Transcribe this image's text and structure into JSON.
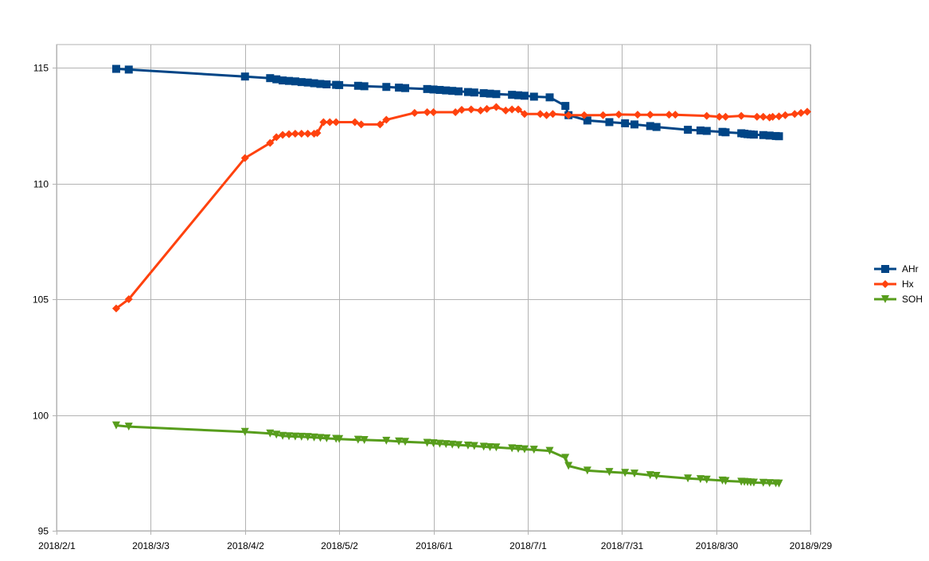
{
  "chart_data": {
    "type": "line",
    "title": "",
    "xlabel": "",
    "ylabel": "",
    "x_axis": {
      "type": "date",
      "range": [
        "2018-02-01",
        "2018-09-29"
      ],
      "tick_labels": [
        "2018/2/1",
        "2018/3/3",
        "2018/4/2",
        "2018/5/2",
        "2018/6/1",
        "2018/7/1",
        "2018/7/31",
        "2018/8/30",
        "2018/9/29"
      ],
      "tick_dates": [
        "2018-02-01",
        "2018-03-03",
        "2018-04-02",
        "2018-05-02",
        "2018-06-01",
        "2018-07-01",
        "2018-07-31",
        "2018-08-30",
        "2018-09-29"
      ]
    },
    "y_axis": {
      "range": [
        95,
        116
      ],
      "ticks": [
        95,
        100,
        105,
        110,
        115
      ],
      "tick_labels": [
        "95",
        "100",
        "105",
        "110",
        "115"
      ]
    },
    "grid": true,
    "legend_position": "right",
    "series": [
      {
        "name": "AHr",
        "color": "#004586",
        "marker": "square",
        "points": [
          [
            "2018-02-20",
            114.95
          ],
          [
            "2018-02-24",
            114.92
          ],
          [
            "2018-04-02",
            114.62
          ],
          [
            "2018-04-10",
            114.55
          ],
          [
            "2018-04-12",
            114.5
          ],
          [
            "2018-04-14",
            114.45
          ],
          [
            "2018-04-16",
            114.43
          ],
          [
            "2018-04-18",
            114.41
          ],
          [
            "2018-04-20",
            114.38
          ],
          [
            "2018-04-22",
            114.36
          ],
          [
            "2018-04-24",
            114.33
          ],
          [
            "2018-04-26",
            114.3
          ],
          [
            "2018-04-28",
            114.28
          ],
          [
            "2018-05-01",
            114.26
          ],
          [
            "2018-05-02",
            114.25
          ],
          [
            "2018-05-08",
            114.22
          ],
          [
            "2018-05-10",
            114.2
          ],
          [
            "2018-05-17",
            114.17
          ],
          [
            "2018-05-21",
            114.14
          ],
          [
            "2018-05-23",
            114.12
          ],
          [
            "2018-05-30",
            114.08
          ],
          [
            "2018-06-01",
            114.06
          ],
          [
            "2018-06-03",
            114.04
          ],
          [
            "2018-06-05",
            114.02
          ],
          [
            "2018-06-07",
            114.0
          ],
          [
            "2018-06-09",
            113.98
          ],
          [
            "2018-06-12",
            113.95
          ],
          [
            "2018-06-14",
            113.93
          ],
          [
            "2018-06-17",
            113.9
          ],
          [
            "2018-06-19",
            113.88
          ],
          [
            "2018-06-21",
            113.86
          ],
          [
            "2018-06-26",
            113.83
          ],
          [
            "2018-06-28",
            113.81
          ],
          [
            "2018-06-30",
            113.79
          ],
          [
            "2018-07-03",
            113.75
          ],
          [
            "2018-07-08",
            113.72
          ],
          [
            "2018-07-13",
            113.35
          ],
          [
            "2018-07-14",
            112.95
          ],
          [
            "2018-07-20",
            112.72
          ],
          [
            "2018-07-27",
            112.65
          ],
          [
            "2018-08-01",
            112.6
          ],
          [
            "2018-08-04",
            112.55
          ],
          [
            "2018-08-09",
            112.48
          ],
          [
            "2018-08-11",
            112.44
          ],
          [
            "2018-08-21",
            112.32
          ],
          [
            "2018-08-25",
            112.29
          ],
          [
            "2018-08-27",
            112.27
          ],
          [
            "2018-09-01",
            112.23
          ],
          [
            "2018-09-02",
            112.21
          ],
          [
            "2018-09-07",
            112.17
          ],
          [
            "2018-09-08",
            112.15
          ],
          [
            "2018-09-09",
            112.13
          ],
          [
            "2018-09-10",
            112.12
          ],
          [
            "2018-09-11",
            112.11
          ],
          [
            "2018-09-14",
            112.09
          ],
          [
            "2018-09-16",
            112.07
          ],
          [
            "2018-09-18",
            112.05
          ],
          [
            "2018-09-19",
            112.04
          ]
        ]
      },
      {
        "name": "Hx",
        "color": "#ff420e",
        "marker": "diamond",
        "points": [
          [
            "2018-02-20",
            104.6
          ],
          [
            "2018-02-24",
            105.0
          ],
          [
            "2018-04-02",
            111.1
          ],
          [
            "2018-04-10",
            111.75
          ],
          [
            "2018-04-12",
            112.0
          ],
          [
            "2018-04-14",
            112.1
          ],
          [
            "2018-04-16",
            112.13
          ],
          [
            "2018-04-18",
            112.15
          ],
          [
            "2018-04-20",
            112.15
          ],
          [
            "2018-04-22",
            112.15
          ],
          [
            "2018-04-24",
            112.15
          ],
          [
            "2018-04-25",
            112.18
          ],
          [
            "2018-04-27",
            112.65
          ],
          [
            "2018-04-29",
            112.65
          ],
          [
            "2018-05-01",
            112.65
          ],
          [
            "2018-05-07",
            112.65
          ],
          [
            "2018-05-09",
            112.55
          ],
          [
            "2018-05-15",
            112.55
          ],
          [
            "2018-05-17",
            112.75
          ],
          [
            "2018-05-26",
            113.05
          ],
          [
            "2018-05-30",
            113.08
          ],
          [
            "2018-06-01",
            113.08
          ],
          [
            "2018-06-08",
            113.08
          ],
          [
            "2018-06-10",
            113.18
          ],
          [
            "2018-06-13",
            113.2
          ],
          [
            "2018-06-16",
            113.15
          ],
          [
            "2018-06-18",
            113.22
          ],
          [
            "2018-06-21",
            113.3
          ],
          [
            "2018-06-24",
            113.15
          ],
          [
            "2018-06-26",
            113.2
          ],
          [
            "2018-06-28",
            113.2
          ],
          [
            "2018-06-30",
            113.0
          ],
          [
            "2018-07-05",
            113.0
          ],
          [
            "2018-07-07",
            112.95
          ],
          [
            "2018-07-09",
            113.0
          ],
          [
            "2018-07-14",
            112.95
          ],
          [
            "2018-07-19",
            112.95
          ],
          [
            "2018-07-25",
            112.95
          ],
          [
            "2018-07-30",
            112.98
          ],
          [
            "2018-08-05",
            112.97
          ],
          [
            "2018-08-09",
            112.97
          ],
          [
            "2018-08-15",
            112.97
          ],
          [
            "2018-08-17",
            112.97
          ],
          [
            "2018-08-27",
            112.92
          ],
          [
            "2018-08-31",
            112.88
          ],
          [
            "2018-09-02",
            112.88
          ],
          [
            "2018-09-07",
            112.92
          ],
          [
            "2018-09-12",
            112.88
          ],
          [
            "2018-09-14",
            112.88
          ],
          [
            "2018-09-16",
            112.85
          ],
          [
            "2018-09-17",
            112.88
          ],
          [
            "2018-09-19",
            112.9
          ],
          [
            "2018-09-21",
            112.95
          ],
          [
            "2018-09-24",
            113.0
          ],
          [
            "2018-09-26",
            113.05
          ],
          [
            "2018-09-28",
            113.1
          ]
        ]
      },
      {
        "name": "SOH",
        "color": "#579d1c",
        "marker": "triangle-down",
        "points": [
          [
            "2018-02-20",
            99.55
          ],
          [
            "2018-02-24",
            99.5
          ],
          [
            "2018-04-02",
            99.27
          ],
          [
            "2018-04-10",
            99.2
          ],
          [
            "2018-04-12",
            99.15
          ],
          [
            "2018-04-14",
            99.1
          ],
          [
            "2018-04-16",
            99.08
          ],
          [
            "2018-04-18",
            99.07
          ],
          [
            "2018-04-20",
            99.06
          ],
          [
            "2018-04-22",
            99.05
          ],
          [
            "2018-04-24",
            99.03
          ],
          [
            "2018-04-26",
            99.01
          ],
          [
            "2018-04-28",
            98.99
          ],
          [
            "2018-05-01",
            98.97
          ],
          [
            "2018-05-02",
            98.96
          ],
          [
            "2018-05-08",
            98.93
          ],
          [
            "2018-05-10",
            98.92
          ],
          [
            "2018-05-17",
            98.89
          ],
          [
            "2018-05-21",
            98.86
          ],
          [
            "2018-05-23",
            98.84
          ],
          [
            "2018-05-30",
            98.8
          ],
          [
            "2018-06-01",
            98.78
          ],
          [
            "2018-06-03",
            98.76
          ],
          [
            "2018-06-05",
            98.74
          ],
          [
            "2018-06-07",
            98.72
          ],
          [
            "2018-06-09",
            98.7
          ],
          [
            "2018-06-12",
            98.68
          ],
          [
            "2018-06-14",
            98.66
          ],
          [
            "2018-06-17",
            98.63
          ],
          [
            "2018-06-19",
            98.61
          ],
          [
            "2018-06-21",
            98.6
          ],
          [
            "2018-06-26",
            98.56
          ],
          [
            "2018-06-28",
            98.54
          ],
          [
            "2018-06-30",
            98.52
          ],
          [
            "2018-07-03",
            98.5
          ],
          [
            "2018-07-08",
            98.45
          ],
          [
            "2018-07-13",
            98.15
          ],
          [
            "2018-07-14",
            97.8
          ],
          [
            "2018-07-20",
            97.6
          ],
          [
            "2018-07-27",
            97.54
          ],
          [
            "2018-08-01",
            97.5
          ],
          [
            "2018-08-04",
            97.47
          ],
          [
            "2018-08-09",
            97.4
          ],
          [
            "2018-08-11",
            97.37
          ],
          [
            "2018-08-21",
            97.26
          ],
          [
            "2018-08-25",
            97.23
          ],
          [
            "2018-08-27",
            97.21
          ],
          [
            "2018-09-01",
            97.17
          ],
          [
            "2018-09-02",
            97.15
          ],
          [
            "2018-09-07",
            97.12
          ],
          [
            "2018-09-08",
            97.11
          ],
          [
            "2018-09-09",
            97.1
          ],
          [
            "2018-09-10",
            97.09
          ],
          [
            "2018-09-11",
            97.08
          ],
          [
            "2018-09-14",
            97.07
          ],
          [
            "2018-09-16",
            97.06
          ],
          [
            "2018-09-18",
            97.05
          ],
          [
            "2018-09-19",
            97.04
          ]
        ]
      }
    ]
  },
  "colors": {
    "grid": "#b3b3b3",
    "axis": "#b3b3b3",
    "background": "#ffffff"
  }
}
